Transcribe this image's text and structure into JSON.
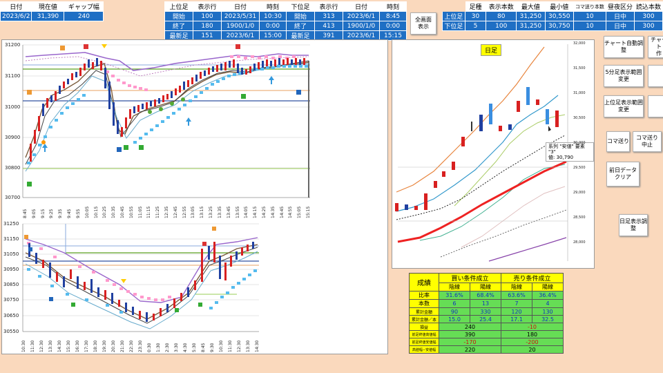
{
  "top_left": {
    "headers": [
      "日付",
      "現在値",
      "ギャップ幅"
    ],
    "values": [
      "2023/6/2",
      "31,390",
      "240"
    ]
  },
  "upper_table": {
    "headers": [
      "上位足",
      "表示行",
      "日付",
      "時刻"
    ],
    "rows": [
      [
        "開始",
        "100",
        "2023/5/31",
        "10:30"
      ],
      [
        "終了",
        "180",
        "1900/1/0",
        "0:00"
      ],
      [
        "最新足",
        "151",
        "2023/6/1",
        "15:00"
      ]
    ]
  },
  "lower_table": {
    "headers": [
      "下位足",
      "表示行",
      "日付",
      "時刻"
    ],
    "rows": [
      [
        "開始",
        "313",
        "2023/6/1",
        "8:45"
      ],
      [
        "終了",
        "413",
        "1900/1/0",
        "0:00"
      ],
      [
        "最新足",
        "391",
        "2023/6/1",
        "15:15"
      ]
    ]
  },
  "fullscreen_button": "全画面\n表示",
  "right_table": {
    "headers": [
      "",
      "足種",
      "表示本数",
      "最大値",
      "最小値",
      "コマ送り本数",
      "昼夜区分",
      "読込本数"
    ],
    "rows": [
      [
        "上位足",
        "30",
        "80",
        "31,250",
        "30,550",
        "10",
        "日中",
        "300"
      ],
      [
        "下位足",
        "5",
        "100",
        "31,250",
        "30,750",
        "10",
        "日中",
        "300"
      ]
    ]
  },
  "buttons": {
    "chart_auto": "チャート自動調整",
    "chart_auto2": "チャート\n作",
    "five_min": "5分足表示範囲変更",
    "upper_range": "上位足表示範囲変更",
    "frame_step": "コマ送り",
    "frame_stop": "コマ送り\n中止",
    "clear_prev": "前日データ\nクリア",
    "daily_adjust": "日足表示調整"
  },
  "main_chart": {
    "y_labels": [
      "31200",
      "31100",
      "31000",
      "30900",
      "30800",
      "30700"
    ],
    "x_labels": [
      "8:45",
      "9:05",
      "9:15",
      "9:25",
      "9:35",
      "9:45",
      "9:55",
      "10:05",
      "10:15",
      "10:25",
      "10:35",
      "10:45",
      "10:55",
      "11:05",
      "11:15",
      "11:25",
      "12:35",
      "12:45",
      "12:55",
      "13:05",
      "13:15",
      "13:25",
      "13:35",
      "13:45",
      "13:55",
      "14:05",
      "14:15",
      "14:25",
      "14:35",
      "14:45",
      "14:55",
      "15:05",
      "15:15"
    ]
  },
  "lower_chart": {
    "y_labels": [
      "31250",
      "31150",
      "31050",
      "30950",
      "30850",
      "30750",
      "30650",
      "30550"
    ],
    "x_labels": [
      "10:30",
      "11:30",
      "12:30",
      "13:30",
      "14:30",
      "15:30",
      "16:30",
      "17:30",
      "18:30",
      "19:30",
      "20:30",
      "21:30",
      "22:30",
      "23:30",
      "0:30",
      "1:30",
      "2:30",
      "3:30",
      "4:30",
      "5:30",
      "8:45",
      "9:30",
      "10:30",
      "11:30",
      "12:30",
      "13:30",
      "14:30"
    ]
  },
  "daily_chart": {
    "title": "日足",
    "tooltip": "系列 \"安値\" 要素 \"3\"\n値: 30,790",
    "y_labels": [
      "32,000",
      "31,500",
      "31,000",
      "30,500",
      "30,000",
      "29,500",
      "29,000",
      "28,500",
      "28,000"
    ]
  },
  "results": {
    "title": "成績",
    "buy": "買い条件成立",
    "sell": "売り条件成立",
    "yin": "陰線",
    "yang": "陽線",
    "rows": [
      {
        "label": "比率",
        "v": [
          "31.6%",
          "68.4%",
          "63.6%",
          "36.4%"
        ]
      },
      {
        "label": "本数",
        "v": [
          "6",
          "13",
          "7",
          "4"
        ]
      },
      {
        "label": "累計金額",
        "v": [
          "90",
          "330",
          "120",
          "130"
        ]
      },
      {
        "label": "累計金額／本",
        "v": [
          "15.0",
          "25.4",
          "17.1",
          "32.5"
        ]
      }
    ],
    "rows2": [
      {
        "label": "損益",
        "buy": "240",
        "sell": "-10"
      },
      {
        "label": "前足終値高値幅",
        "buy": "390",
        "sell": "180"
      },
      {
        "label": "前足終値安値幅",
        "buy": "-170",
        "sell": "-200"
      },
      {
        "label": "高値幅−安値幅",
        "buy": "220",
        "sell": "20"
      }
    ]
  },
  "colors": {
    "header_blue": "#1f6fc4",
    "background": "#fad9bd",
    "result_yellow": "#ffff00",
    "result_green": "#66dd55"
  }
}
